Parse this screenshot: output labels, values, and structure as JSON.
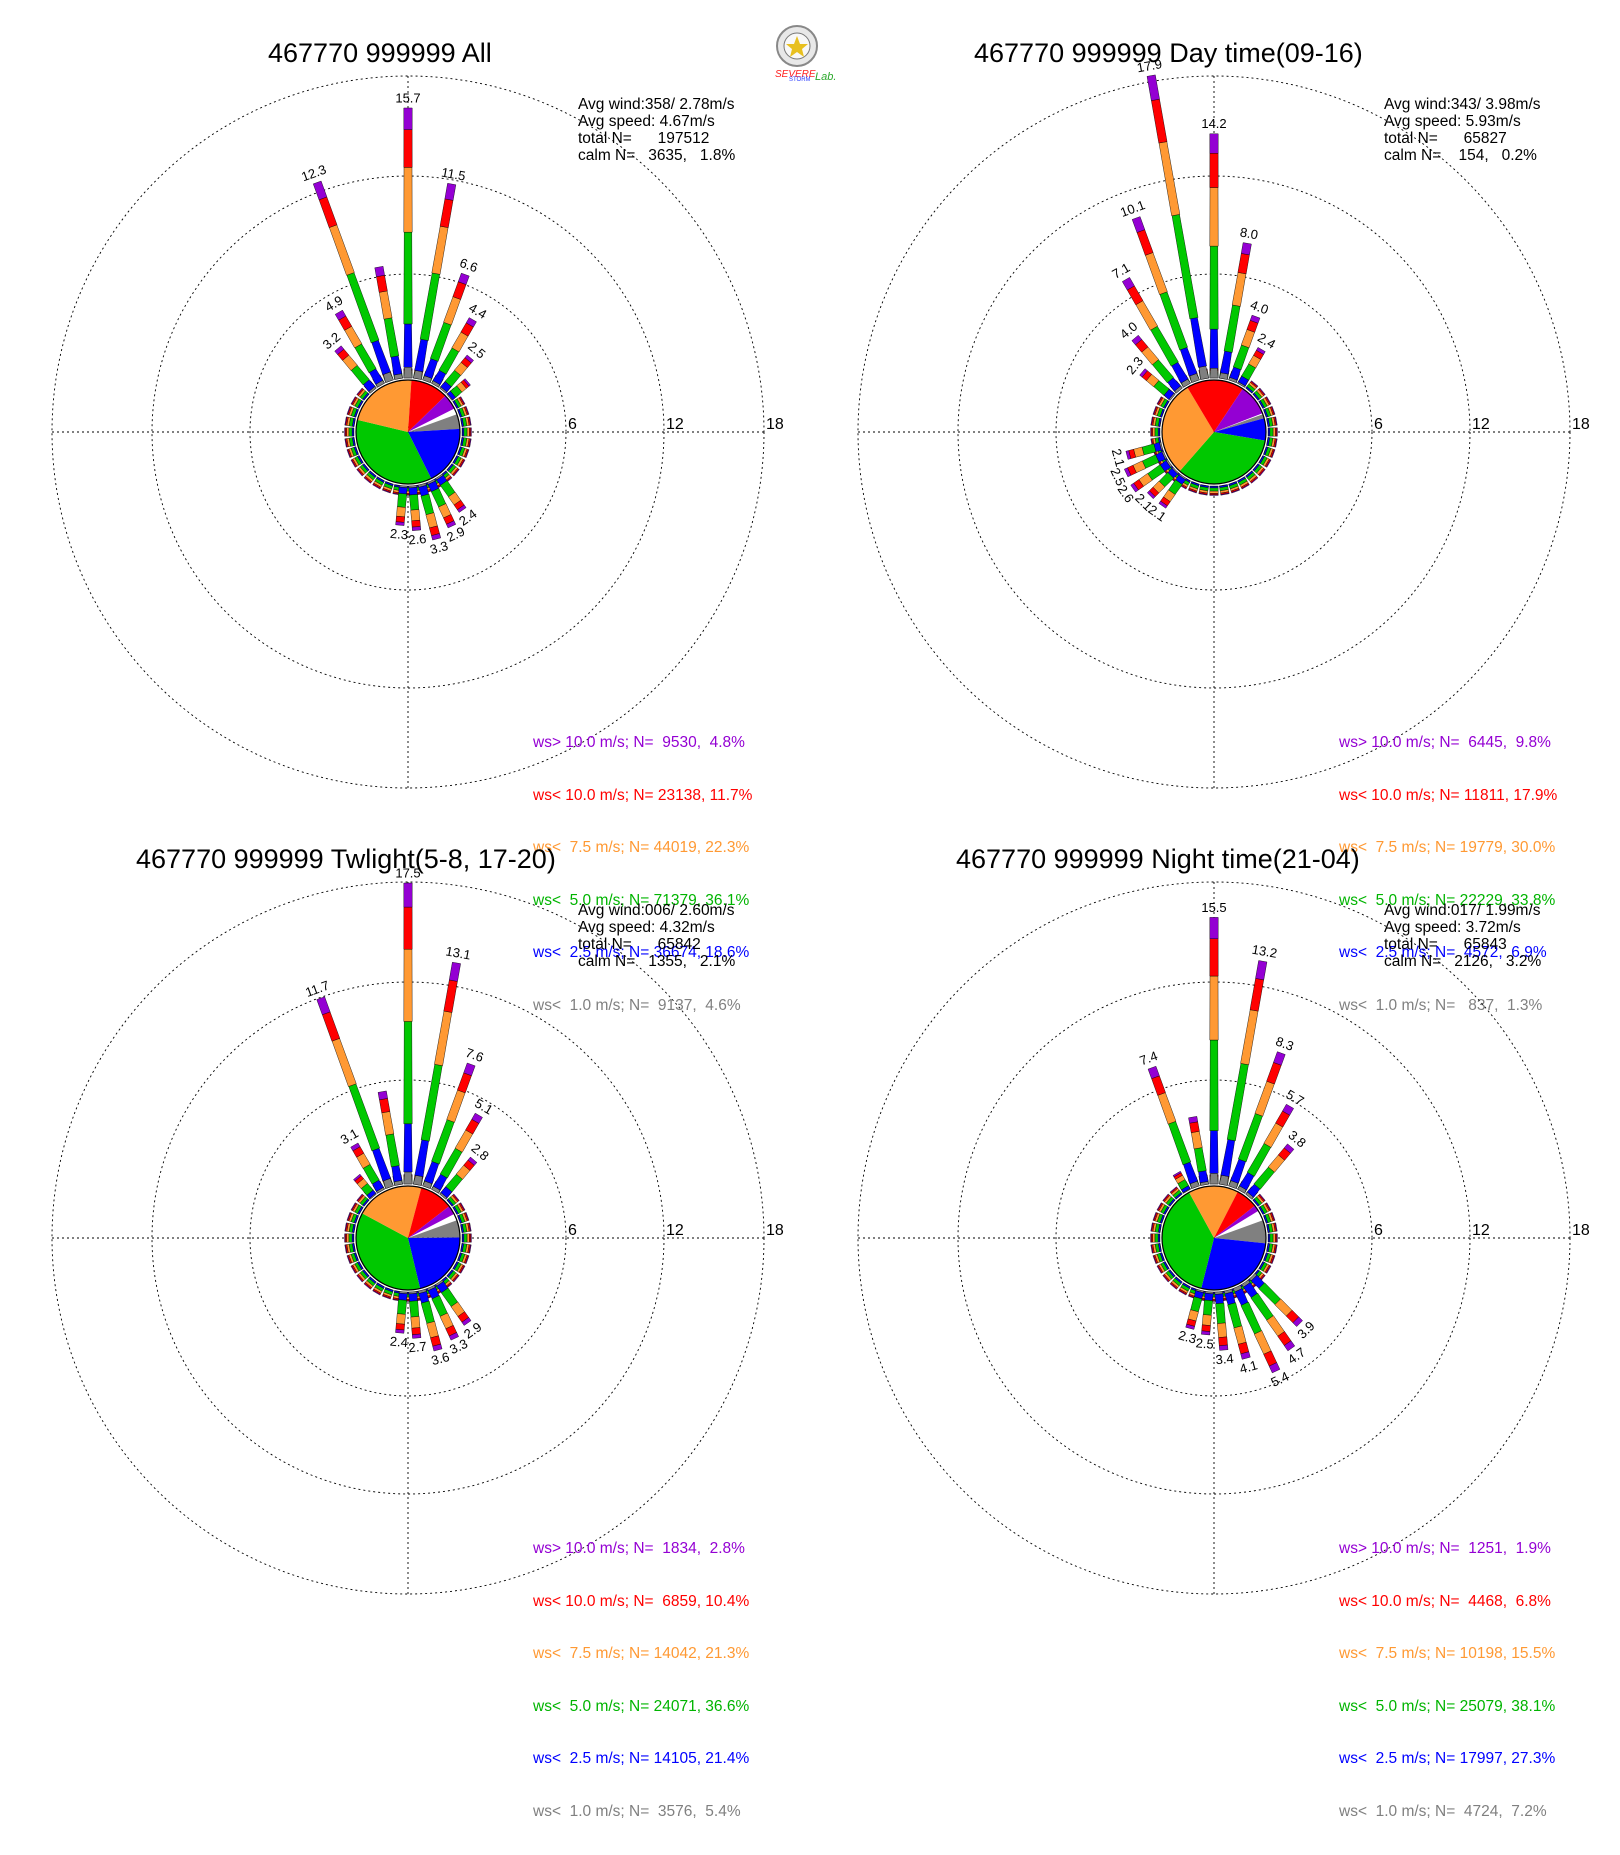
{
  "logo": {
    "lines": [
      "SEVERE",
      "STORM",
      "Lab."
    ],
    "colors": {
      "severe": "#ff2020",
      "storm": "#2a3cff",
      "lab": "#2aa82a"
    }
  },
  "colors": {
    "ws_gt10": "#9400d3",
    "ws_lt10": "#ff0000",
    "ws_lt7_5": "#ff9933",
    "ws_lt5": "#00c800",
    "ws_lt2_5": "#0000ff",
    "ws_lt1": "#808080",
    "grid": "#000000"
  },
  "chart_data": [
    {
      "type": "windrose",
      "title": "467770 999999 All",
      "ring_labels": [
        "6",
        "12",
        "18"
      ],
      "rlim": [
        0,
        18
      ],
      "stats": {
        "avg_wind": "Avg wind:358/ 2.78m/s",
        "avg_speed": "Avg speed: 4.67m/s",
        "total": "total N=      197512",
        "calm": "calm N=   3635,   1.8%"
      },
      "legend": [
        "ws> 10.0 m/s; N=  9530,  4.8%",
        "ws< 10.0 m/s; N= 23138, 11.7%",
        "ws<  7.5 m/s; N= 44019, 22.3%",
        "ws<  5.0 m/s; N= 71379, 36.1%",
        "ws<  2.5 m/s; N= 36674, 18.6%",
        "ws<  1.0 m/s; N=  9137,  4.6%"
      ],
      "pie": [
        4.6,
        18.6,
        36.1,
        22.3,
        11.7,
        4.8
      ],
      "directions_deg": [
        -40,
        -30,
        -20,
        -10,
        0,
        10,
        20,
        30,
        40,
        50
      ],
      "totals": [
        3.2,
        4.9,
        12.3,
        6.6,
        15.7,
        11.5,
        6.6,
        4.4,
        2.5,
        1.4
      ],
      "petal_labels": [
        "3.2",
        "4.9",
        "12.3",
        "",
        "15.7",
        "11.5",
        "6.6",
        "4.4",
        "2.5",
        ""
      ],
      "south_labels": [
        "2.4",
        "2.9",
        "3.3",
        "2.6",
        "2.3"
      ],
      "south_dirs": [
        145,
        155,
        165,
        175,
        185
      ],
      "south_totals": [
        2.4,
        2.9,
        3.3,
        2.6,
        2.3
      ]
    },
    {
      "type": "windrose",
      "title": "467770 999999 Day time(09-16)",
      "ring_labels": [
        "6",
        "12",
        "18"
      ],
      "rlim": [
        0,
        18
      ],
      "stats": {
        "avg_wind": "Avg wind:343/ 3.98m/s",
        "avg_speed": "Avg speed: 5.93m/s",
        "total": "total N=      65827",
        "calm": "calm N=    154,   0.2%"
      },
      "legend": [
        "ws> 10.0 m/s; N=  6445,  9.8%",
        "ws< 10.0 m/s; N= 11811, 17.9%",
        "ws<  7.5 m/s; N= 19779, 30.0%",
        "ws<  5.0 m/s; N= 22229, 33.8%",
        "ws<  2.5 m/s; N=  4572,  6.9%",
        "ws<  1.0 m/s; N=   837,  1.3%"
      ],
      "pie": [
        1.3,
        6.9,
        33.8,
        30.0,
        17.9,
        9.8
      ],
      "directions_deg": [
        -50,
        -40,
        -30,
        -20,
        -10,
        0,
        10,
        20,
        30
      ],
      "totals": [
        2.3,
        4.0,
        7.1,
        10.1,
        17.9,
        14.2,
        8.0,
        4.0,
        2.4
      ],
      "petal_labels": [
        "2.3",
        "4.0",
        "7.1",
        "10.1",
        "17.9",
        "14.2",
        "8.0",
        "4.0",
        "2.4"
      ],
      "south_labels": [
        "2.1",
        "2.5",
        "2.6",
        "2.1",
        "2.1"
      ],
      "south_dirs": [
        255,
        245,
        235,
        225,
        215
      ],
      "south_totals": [
        2.1,
        2.5,
        2.6,
        2.1,
        2.1
      ]
    },
    {
      "type": "windrose",
      "title": "467770 999999 Twlight(5-8, 17-20)",
      "ring_labels": [
        "6",
        "12",
        "18"
      ],
      "rlim": [
        0,
        18
      ],
      "stats": {
        "avg_wind": "Avg wind:006/ 2.60m/s",
        "avg_speed": "Avg speed: 4.32m/s",
        "total": "total N=      65842",
        "calm": "calm N=   1355,   2.1%"
      },
      "legend": [
        "ws> 10.0 m/s; N=  1834,  2.8%",
        "ws< 10.0 m/s; N=  6859, 10.4%",
        "ws<  7.5 m/s; N= 14042, 21.3%",
        "ws<  5.0 m/s; N= 24071, 36.6%",
        "ws<  2.5 m/s; N= 14105, 21.4%",
        "ws<  1.0 m/s; N=  3576,  5.4%"
      ],
      "pie": [
        5.4,
        21.4,
        36.6,
        21.3,
        10.4,
        2.8
      ],
      "directions_deg": [
        -40,
        -30,
        -20,
        -10,
        0,
        10,
        20,
        30,
        40
      ],
      "totals": [
        1.5,
        3.1,
        11.7,
        5.5,
        17.5,
        13.1,
        7.6,
        5.1,
        2.8
      ],
      "petal_labels": [
        "",
        "3.1",
        "11.7",
        "",
        "17.5",
        "13.1",
        "7.6",
        "5.1",
        "2.8"
      ],
      "south_labels": [
        "2.9",
        "3.3",
        "3.6",
        "2.7",
        "2.4"
      ],
      "south_dirs": [
        145,
        155,
        165,
        175,
        185
      ],
      "south_totals": [
        2.9,
        3.3,
        3.6,
        2.7,
        2.4
      ]
    },
    {
      "type": "windrose",
      "title": "467770 999999 Night time(21-04)",
      "ring_labels": [
        "6",
        "12",
        "18"
      ],
      "rlim": [
        0,
        18
      ],
      "stats": {
        "avg_wind": "Avg wind:017/ 1.99m/s",
        "avg_speed": "Avg speed: 3.72m/s",
        "total": "total N=      65843",
        "calm": "calm N=   2126,   3.2%"
      },
      "legend": [
        "ws> 10.0 m/s; N=  1251,  1.9%",
        "ws< 10.0 m/s; N=  4468,  6.8%",
        "ws<  7.5 m/s; N= 10198, 15.5%",
        "ws<  5.0 m/s; N= 25079, 38.1%",
        "ws<  2.5 m/s; N= 17997, 27.3%",
        "ws<  1.0 m/s; N=  4724,  7.2%"
      ],
      "pie": [
        7.2,
        27.3,
        38.1,
        15.5,
        6.8,
        1.9
      ],
      "directions_deg": [
        -30,
        -20,
        -10,
        0,
        10,
        20,
        30,
        40
      ],
      "totals": [
        1.2,
        7.4,
        4.0,
        15.5,
        13.2,
        8.3,
        5.7,
        3.8
      ],
      "petal_labels": [
        "",
        "7.4",
        "",
        "15.5",
        "13.2",
        "8.3",
        "5.7",
        "3.8"
      ],
      "south_labels": [
        "3.9",
        "4.7",
        "5.4",
        "4.1",
        "3.4",
        "2.5",
        "2.3"
      ],
      "south_dirs": [
        135,
        145,
        155,
        165,
        175,
        185,
        195
      ],
      "south_totals": [
        3.9,
        4.7,
        5.4,
        4.1,
        3.4,
        2.5,
        2.3
      ]
    }
  ]
}
